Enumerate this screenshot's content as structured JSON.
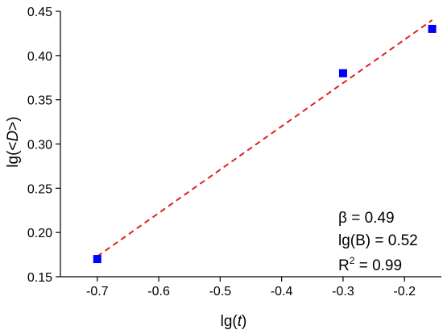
{
  "chart_data": {
    "type": "scatter",
    "xlabel_prefix": "lg(",
    "xlabel_var": "t",
    "xlabel_suffix": ")",
    "ylabel_prefix": "lg(<",
    "ylabel_var": "D",
    "ylabel_suffix": ">)",
    "xlim": [
      -0.76,
      -0.14
    ],
    "ylim": [
      0.15,
      0.45
    ],
    "x_ticks": [
      -0.7,
      -0.6,
      -0.5,
      -0.4,
      -0.3,
      -0.2
    ],
    "x_tick_labels": [
      "-0.7",
      "-0.6",
      "-0.5",
      "-0.4",
      "-0.3",
      "-0.2"
    ],
    "y_ticks": [
      0.15,
      0.2,
      0.25,
      0.3,
      0.35,
      0.4,
      0.45
    ],
    "y_tick_labels": [
      "0.15",
      "0.20",
      "0.25",
      "0.30",
      "0.35",
      "0.40",
      "0.45"
    ],
    "grid": false,
    "series": [
      {
        "kind": "points",
        "marker": "square",
        "color": "#0000ff",
        "x": [
          -0.7,
          -0.3,
          -0.155
        ],
        "y": [
          0.17,
          0.38,
          0.43
        ]
      },
      {
        "kind": "fit-line",
        "style": "dashed",
        "color": "#e02020",
        "x": [
          -0.7,
          -0.155
        ],
        "y": [
          0.173,
          0.44
        ]
      }
    ],
    "annotations": {
      "beta": "β = 0.49",
      "lgB": "lg(B) = 0.52",
      "r2_base": "R",
      "r2_sup": "2",
      "r2_value": " =  0.99"
    }
  }
}
